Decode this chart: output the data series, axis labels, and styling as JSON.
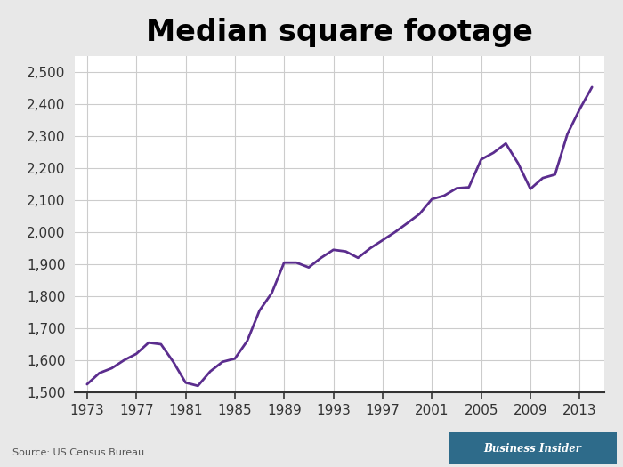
{
  "title": "Median square footage",
  "line_color": "#5B2D8E",
  "background_color": "#e8e8e8",
  "plot_background_color": "#ffffff",
  "source_text": "Source: US Census Bureau",
  "years": [
    1973,
    1974,
    1975,
    1976,
    1977,
    1978,
    1979,
    1980,
    1981,
    1982,
    1983,
    1984,
    1985,
    1986,
    1987,
    1988,
    1989,
    1990,
    1991,
    1992,
    1993,
    1994,
    1995,
    1996,
    1997,
    1998,
    1999,
    2000,
    2001,
    2002,
    2003,
    2004,
    2005,
    2006,
    2007,
    2008,
    2009,
    2010,
    2011,
    2012,
    2013,
    2014
  ],
  "values": [
    1525,
    1560,
    1575,
    1600,
    1620,
    1655,
    1650,
    1595,
    1530,
    1520,
    1565,
    1595,
    1605,
    1660,
    1755,
    1810,
    1905,
    1905,
    1890,
    1920,
    1945,
    1940,
    1920,
    1950,
    1975,
    2000,
    2028,
    2057,
    2103,
    2114,
    2137,
    2140,
    2227,
    2248,
    2277,
    2215,
    2135,
    2169,
    2180,
    2306,
    2384,
    2453
  ],
  "ylim": [
    1500,
    2550
  ],
  "yticks": [
    1500,
    1600,
    1700,
    1800,
    1900,
    2000,
    2100,
    2200,
    2300,
    2400,
    2500
  ],
  "xticks": [
    1973,
    1977,
    1981,
    1985,
    1989,
    1993,
    1997,
    2001,
    2005,
    2009,
    2013
  ],
  "xlim": [
    1972.0,
    2015.0
  ],
  "line_width": 2.0,
  "title_fontsize": 24,
  "tick_fontsize": 11,
  "source_fontsize": 8,
  "bi_box_color": "#2E6B8A",
  "bi_text_color": "#ffffff",
  "bi_text": "Business Insider",
  "grid_color": "#cccccc",
  "spine_color": "#333333"
}
